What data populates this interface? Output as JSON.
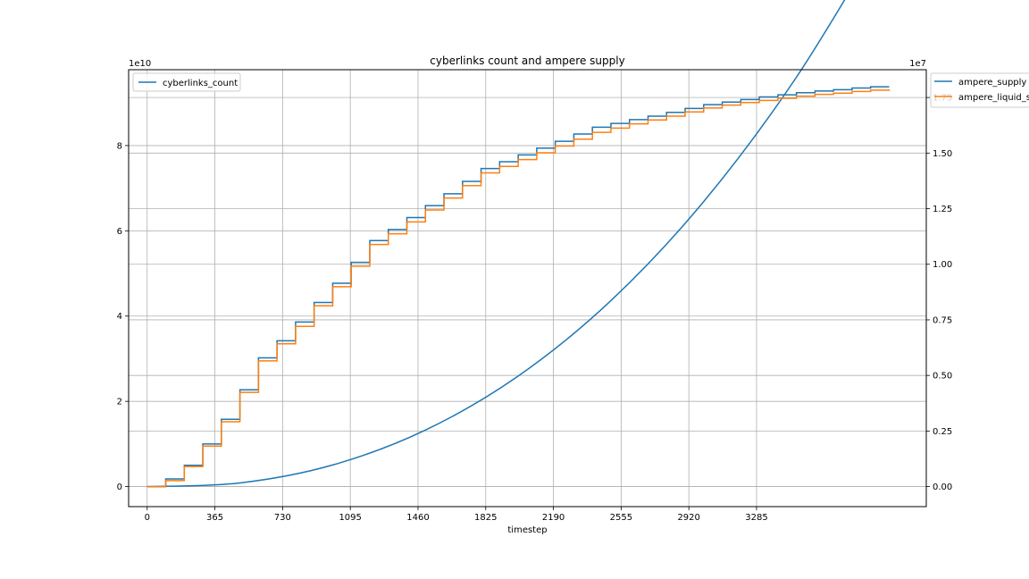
{
  "chart_data": {
    "type": "line",
    "title": "cyberlinks count and ampere supply",
    "xlabel": "timestep",
    "ylabel": "",
    "y2label": "",
    "grid": true,
    "xlim": [
      -100,
      4200
    ],
    "xticks": [
      0,
      365,
      730,
      1095,
      1460,
      1825,
      2190,
      2555,
      2920,
      3285
    ],
    "left_axis": {
      "ylim": [
        -0.47,
        9.78
      ],
      "ticks": [
        0,
        2,
        4,
        6,
        8
      ],
      "tick_labels": [
        "0",
        "2",
        "4",
        "6",
        "8"
      ],
      "offset_text": "1e10"
    },
    "right_axis": {
      "ylim": [
        -0.09,
        1.875
      ],
      "ticks": [
        0.0,
        0.25,
        0.5,
        0.75,
        1.0,
        1.25,
        1.5,
        1.75
      ],
      "tick_labels": [
        "0.00",
        "0.25",
        "0.50",
        "0.75",
        "1.00",
        "1.25",
        "1.50",
        "1.75"
      ],
      "offset_text": "1e7"
    },
    "legend_left": {
      "placement": "upper-left",
      "entries": [
        "cyberlinks_count"
      ]
    },
    "legend_right": {
      "placement": "outside-top-right",
      "entries": [
        "ampere_supply",
        "ampere_liquid_s"
      ]
    },
    "series": [
      {
        "name": "cyberlinks_count",
        "axis": "left",
        "color": "#1f77b4",
        "style": "step",
        "steps": [
          [
            0,
            0.0
          ],
          [
            100,
            0.18
          ],
          [
            200,
            0.5
          ],
          [
            300,
            1.0
          ],
          [
            400,
            1.58
          ],
          [
            500,
            2.27
          ],
          [
            600,
            3.02
          ],
          [
            700,
            3.42
          ],
          [
            800,
            3.86
          ],
          [
            900,
            4.32
          ],
          [
            1000,
            4.77
          ],
          [
            1100,
            5.26
          ],
          [
            1200,
            5.77
          ],
          [
            1300,
            6.03
          ],
          [
            1400,
            6.31
          ],
          [
            1500,
            6.59
          ],
          [
            1600,
            6.87
          ],
          [
            1700,
            7.16
          ],
          [
            1800,
            7.46
          ],
          [
            1900,
            7.62
          ],
          [
            2000,
            7.78
          ],
          [
            2100,
            7.94
          ],
          [
            2200,
            8.1
          ],
          [
            2300,
            8.27
          ],
          [
            2400,
            8.43
          ],
          [
            2500,
            8.52
          ],
          [
            2600,
            8.61
          ],
          [
            2700,
            8.69
          ],
          [
            2800,
            8.78
          ],
          [
            2900,
            8.87
          ],
          [
            3000,
            8.96
          ],
          [
            3100,
            9.02
          ],
          [
            3200,
            9.08
          ],
          [
            3300,
            9.14
          ],
          [
            3400,
            9.19
          ],
          [
            3500,
            9.24
          ],
          [
            3600,
            9.28
          ],
          [
            3700,
            9.31
          ],
          [
            3800,
            9.35
          ],
          [
            3900,
            9.38
          ],
          [
            4000,
            9.38
          ]
        ]
      },
      {
        "name": "ampere_supply",
        "axis": "right",
        "color": "#1f77b4",
        "style": "line",
        "x": [
          0,
          500,
          1000,
          1500,
          2000,
          2500,
          3000,
          3500,
          4000
        ],
        "y": [
          0.0,
          0.0166,
          0.0973,
          0.2542,
          0.4971,
          0.8365,
          1.2818,
          1.8413,
          2.525
        ]
      },
      {
        "name": "ampere_liquid_s",
        "axis": "left",
        "color": "#ff7f0e",
        "style": "step",
        "steps": [
          [
            0,
            0.0
          ],
          [
            100,
            0.14
          ],
          [
            200,
            0.47
          ],
          [
            300,
            0.95
          ],
          [
            400,
            1.52
          ],
          [
            500,
            2.21
          ],
          [
            600,
            2.95
          ],
          [
            700,
            3.35
          ],
          [
            800,
            3.76
          ],
          [
            900,
            4.24
          ],
          [
            1000,
            4.69
          ],
          [
            1100,
            5.17
          ],
          [
            1200,
            5.68
          ],
          [
            1300,
            5.93
          ],
          [
            1400,
            6.21
          ],
          [
            1500,
            6.49
          ],
          [
            1600,
            6.77
          ],
          [
            1700,
            7.06
          ],
          [
            1800,
            7.36
          ],
          [
            1900,
            7.51
          ],
          [
            2000,
            7.67
          ],
          [
            2100,
            7.83
          ],
          [
            2200,
            7.99
          ],
          [
            2300,
            8.15
          ],
          [
            2400,
            8.31
          ],
          [
            2500,
            8.41
          ],
          [
            2600,
            8.51
          ],
          [
            2700,
            8.6
          ],
          [
            2800,
            8.69
          ],
          [
            2900,
            8.79
          ],
          [
            3000,
            8.88
          ],
          [
            3100,
            8.95
          ],
          [
            3200,
            9.01
          ],
          [
            3300,
            9.06
          ],
          [
            3400,
            9.11
          ],
          [
            3500,
            9.16
          ],
          [
            3600,
            9.2
          ],
          [
            3700,
            9.23
          ],
          [
            3800,
            9.27
          ],
          [
            3900,
            9.3
          ],
          [
            4000,
            9.32
          ]
        ]
      }
    ]
  }
}
